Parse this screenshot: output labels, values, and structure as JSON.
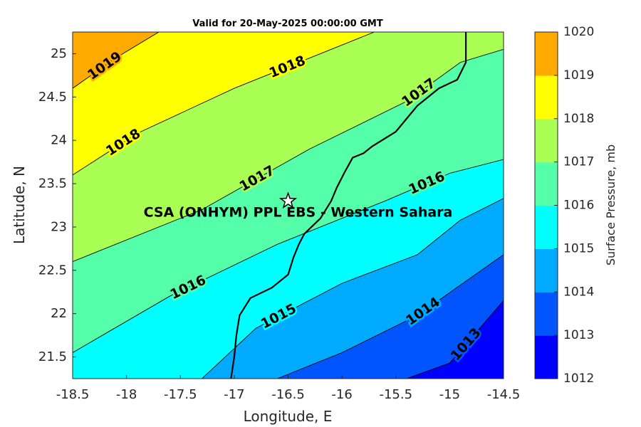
{
  "chart_data": {
    "type": "contour",
    "title": "Valid for 20-May-2025 00:00:00 GMT",
    "xlabel": "Longitude, E",
    "ylabel": "Latitude, N",
    "xlim": [
      -18.5,
      -14.5
    ],
    "ylim": [
      21.25,
      25.25
    ],
    "xticks": [
      -18.5,
      -18,
      -17.5,
      -17,
      -16.5,
      -16,
      -15.5,
      -15,
      -14.5
    ],
    "xtick_labels": [
      "-18.5",
      "-18",
      "-17.5",
      "-17",
      "-16.5",
      "-16",
      "-15.5",
      "-15",
      "-14.5"
    ],
    "yticks": [
      21.5,
      22,
      22.5,
      23,
      23.5,
      24,
      24.5,
      25
    ],
    "ytick_labels": [
      "21.5",
      "22",
      "22.5",
      "23",
      "23.5",
      "24",
      "24.5",
      "25"
    ],
    "colorbar": {
      "label": "Surface Pressure, mb",
      "range": [
        1012,
        1020
      ],
      "ticks": [
        "1012",
        "1013",
        "1014",
        "1015",
        "1016",
        "1017",
        "1018",
        "1019",
        "1020"
      ],
      "colors": [
        "#0000ff",
        "#0055ff",
        "#00aaff",
        "#00ffff",
        "#55ffaa",
        "#aaff55",
        "#ffff00",
        "#ffaa00",
        "#ff5500"
      ]
    },
    "contour_levels": [
      {
        "level": 1013,
        "label": "1013",
        "points": [
          [
            -15.4,
            21.25
          ],
          [
            -15.0,
            21.43
          ],
          [
            -14.5,
            22.15
          ]
        ]
      },
      {
        "level": 1014,
        "label": "1014",
        "points": [
          [
            -16.6,
            21.25
          ],
          [
            -16.0,
            21.55
          ],
          [
            -15.3,
            21.98
          ],
          [
            -14.5,
            22.68
          ]
        ]
      },
      {
        "level": 1015,
        "label": "1015",
        "points": [
          [
            -17.3,
            21.25
          ],
          [
            -16.8,
            21.83
          ],
          [
            -16.0,
            22.35
          ],
          [
            -15.3,
            22.68
          ],
          [
            -14.9,
            23.08
          ],
          [
            -14.5,
            23.33
          ]
        ]
      },
      {
        "level": 1016,
        "label": "1016",
        "points": [
          [
            -18.5,
            21.55
          ],
          [
            -17.6,
            22.2
          ],
          [
            -16.6,
            22.8
          ],
          [
            -15.6,
            23.3
          ],
          [
            -15.0,
            23.62
          ],
          [
            -14.5,
            23.78
          ]
        ]
      },
      {
        "level": 1017,
        "label": "1017",
        "points": [
          [
            -18.5,
            22.6
          ],
          [
            -17.3,
            23.2
          ],
          [
            -16.3,
            23.9
          ],
          [
            -15.4,
            24.45
          ],
          [
            -14.9,
            24.9
          ],
          [
            -14.5,
            25.05
          ]
        ]
      },
      {
        "level": 1018,
        "label": "1018",
        "points": [
          [
            -18.5,
            23.6
          ],
          [
            -17.9,
            24.08
          ],
          [
            -17.0,
            24.6
          ],
          [
            -16.0,
            25.1
          ],
          [
            -15.7,
            25.25
          ]
        ]
      },
      {
        "level": 1019,
        "label": "1019",
        "points": [
          [
            -18.5,
            24.6
          ],
          [
            -18.1,
            24.95
          ],
          [
            -17.7,
            25.25
          ]
        ]
      }
    ],
    "coastline": [
      [
        -14.85,
        25.25
      ],
      [
        -14.85,
        24.9
      ],
      [
        -14.93,
        24.7
      ],
      [
        -15.1,
        24.6
      ],
      [
        -15.3,
        24.4
      ],
      [
        -15.5,
        24.1
      ],
      [
        -15.72,
        23.93
      ],
      [
        -15.8,
        23.85
      ],
      [
        -15.9,
        23.8
      ],
      [
        -15.98,
        23.62
      ],
      [
        -16.05,
        23.45
      ],
      [
        -16.1,
        23.3
      ],
      [
        -16.2,
        23.1
      ],
      [
        -16.35,
        22.92
      ],
      [
        -16.4,
        22.8
      ],
      [
        -16.45,
        22.65
      ],
      [
        -16.5,
        22.45
      ],
      [
        -16.65,
        22.3
      ],
      [
        -16.85,
        22.18
      ],
      [
        -16.95,
        21.98
      ],
      [
        -16.98,
        21.75
      ],
      [
        -17.0,
        21.5
      ],
      [
        -17.03,
        21.25
      ]
    ],
    "station": {
      "name": "CSA (ONHYM) PPL EBS - Western Sahara",
      "lon": -16.5,
      "lat": 23.3
    }
  }
}
